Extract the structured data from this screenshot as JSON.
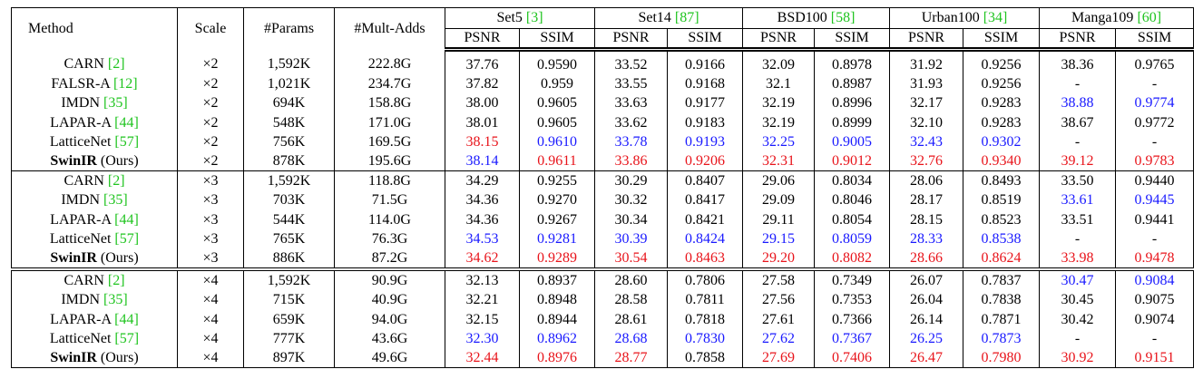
{
  "header": {
    "columns": [
      "Method",
      "Scale",
      "#Params",
      "#Mult-Adds"
    ],
    "datasets": [
      {
        "name": "Set5",
        "ref": "[3]"
      },
      {
        "name": "Set14",
        "ref": "[87]"
      },
      {
        "name": "BSD100",
        "ref": "[58]"
      },
      {
        "name": "Urban100",
        "ref": "[34]"
      },
      {
        "name": "Manga109",
        "ref": "[60]"
      }
    ],
    "metrics": [
      "PSNR",
      "SSIM"
    ]
  },
  "groups": [
    {
      "rows": [
        {
          "method": "CARN",
          "ref": "[2]",
          "scale": "×2",
          "params": "1,592K",
          "mult_adds": "222.8G",
          "scores": [
            "37.76",
            "0.9590",
            "33.52",
            "0.9166",
            "32.09",
            "0.8978",
            "31.92",
            "0.9256",
            "38.36",
            "0.9765"
          ]
        },
        {
          "method": "FALSR-A",
          "ref": "[12]",
          "scale": "×2",
          "params": "1,021K",
          "mult_adds": "234.7G",
          "scores": [
            "37.82",
            "0.959",
            "33.55",
            "0.9168",
            "32.1",
            "0.8987",
            "31.93",
            "0.9256",
            "-",
            "-"
          ]
        },
        {
          "method": "IMDN",
          "ref": "[35]",
          "scale": "×2",
          "params": "694K",
          "mult_adds": "158.8G",
          "scores": [
            "38.00",
            "0.9605",
            "33.63",
            "0.9177",
            "32.19",
            "0.8996",
            "32.17",
            "0.9283",
            "38.88",
            "0.9774"
          ],
          "blue": [
            8,
            9
          ]
        },
        {
          "method": "LAPAR-A",
          "ref": "[44]",
          "scale": "×2",
          "params": "548K",
          "mult_adds": "171.0G",
          "scores": [
            "38.01",
            "0.9605",
            "33.62",
            "0.9183",
            "32.19",
            "0.8999",
            "32.10",
            "0.9283",
            "38.67",
            "0.9772"
          ]
        },
        {
          "method": "LatticeNet",
          "ref": "[57]",
          "scale": "×2",
          "params": "756K",
          "mult_adds": "169.5G",
          "scores": [
            "38.15",
            "0.9610",
            "33.78",
            "0.9193",
            "32.25",
            "0.9005",
            "32.43",
            "0.9302",
            "-",
            "-"
          ],
          "red": [
            0
          ],
          "blue": [
            1,
            2,
            3,
            4,
            5,
            6,
            7
          ]
        },
        {
          "method": "SwinIR",
          "note": "(Ours)",
          "bold": true,
          "scale": "×2",
          "params": "878K",
          "mult_adds": "195.6G",
          "scores": [
            "38.14",
            "0.9611",
            "33.86",
            "0.9206",
            "32.31",
            "0.9012",
            "32.76",
            "0.9340",
            "39.12",
            "0.9783"
          ],
          "red": [
            1,
            2,
            3,
            4,
            5,
            6,
            7,
            8,
            9
          ],
          "blue": [
            0
          ]
        }
      ]
    },
    {
      "rows": [
        {
          "method": "CARN",
          "ref": "[2]",
          "scale": "×3",
          "params": "1,592K",
          "mult_adds": "118.8G",
          "scores": [
            "34.29",
            "0.9255",
            "30.29",
            "0.8407",
            "29.06",
            "0.8034",
            "28.06",
            "0.8493",
            "33.50",
            "0.9440"
          ]
        },
        {
          "method": "IMDN",
          "ref": "[35]",
          "scale": "×3",
          "params": "703K",
          "mult_adds": "71.5G",
          "scores": [
            "34.36",
            "0.9270",
            "30.32",
            "0.8417",
            "29.09",
            "0.8046",
            "28.17",
            "0.8519",
            "33.61",
            "0.9445"
          ],
          "blue": [
            8,
            9
          ]
        },
        {
          "method": "LAPAR-A",
          "ref": "[44]",
          "scale": "×3",
          "params": "544K",
          "mult_adds": "114.0G",
          "scores": [
            "34.36",
            "0.9267",
            "30.34",
            "0.8421",
            "29.11",
            "0.8054",
            "28.15",
            "0.8523",
            "33.51",
            "0.9441"
          ]
        },
        {
          "method": "LatticeNet",
          "ref": "[57]",
          "scale": "×3",
          "params": "765K",
          "mult_adds": "76.3G",
          "scores": [
            "34.53",
            "0.9281",
            "30.39",
            "0.8424",
            "29.15",
            "0.8059",
            "28.33",
            "0.8538",
            "-",
            "-"
          ],
          "blue": [
            0,
            1,
            2,
            3,
            4,
            5,
            6,
            7
          ]
        },
        {
          "method": "SwinIR",
          "note": "(Ours)",
          "bold": true,
          "scale": "×3",
          "params": "886K",
          "mult_adds": "87.2G",
          "scores": [
            "34.62",
            "0.9289",
            "30.54",
            "0.8463",
            "29.20",
            "0.8082",
            "28.66",
            "0.8624",
            "33.98",
            "0.9478"
          ],
          "red": [
            0,
            1,
            2,
            3,
            4,
            5,
            6,
            7,
            8,
            9
          ]
        }
      ]
    },
    {
      "rows": [
        {
          "method": "CARN",
          "ref": "[2]",
          "scale": "×4",
          "params": "1,592K",
          "mult_adds": "90.9G",
          "scores": [
            "32.13",
            "0.8937",
            "28.60",
            "0.7806",
            "27.58",
            "0.7349",
            "26.07",
            "0.7837",
            "30.47",
            "0.9084"
          ],
          "blue": [
            8,
            9
          ]
        },
        {
          "method": "IMDN",
          "ref": "[35]",
          "scale": "×4",
          "params": "715K",
          "mult_adds": "40.9G",
          "scores": [
            "32.21",
            "0.8948",
            "28.58",
            "0.7811",
            "27.56",
            "0.7353",
            "26.04",
            "0.7838",
            "30.45",
            "0.9075"
          ]
        },
        {
          "method": "LAPAR-A",
          "ref": "[44]",
          "scale": "×4",
          "params": "659K",
          "mult_adds": "94.0G",
          "scores": [
            "32.15",
            "0.8944",
            "28.61",
            "0.7818",
            "27.61",
            "0.7366",
            "26.14",
            "0.7871",
            "30.42",
            "0.9074"
          ]
        },
        {
          "method": "LatticeNet",
          "ref": "[57]",
          "scale": "×4",
          "params": "777K",
          "mult_adds": "43.6G",
          "scores": [
            "32.30",
            "0.8962",
            "28.68",
            "0.7830",
            "27.62",
            "0.7367",
            "26.25",
            "0.7873",
            "-",
            "-"
          ],
          "blue": [
            0,
            1,
            2,
            3,
            4,
            5,
            6,
            7
          ]
        },
        {
          "method": "SwinIR",
          "note": "(Ours)",
          "bold": true,
          "scale": "×4",
          "params": "897K",
          "mult_adds": "49.6G",
          "scores": [
            "32.44",
            "0.8976",
            "28.77",
            "0.7858",
            "27.69",
            "0.7406",
            "26.47",
            "0.7980",
            "30.92",
            "0.9151"
          ],
          "red": [
            0,
            1,
            2,
            4,
            5,
            6,
            7,
            8,
            9
          ]
        }
      ]
    }
  ]
}
